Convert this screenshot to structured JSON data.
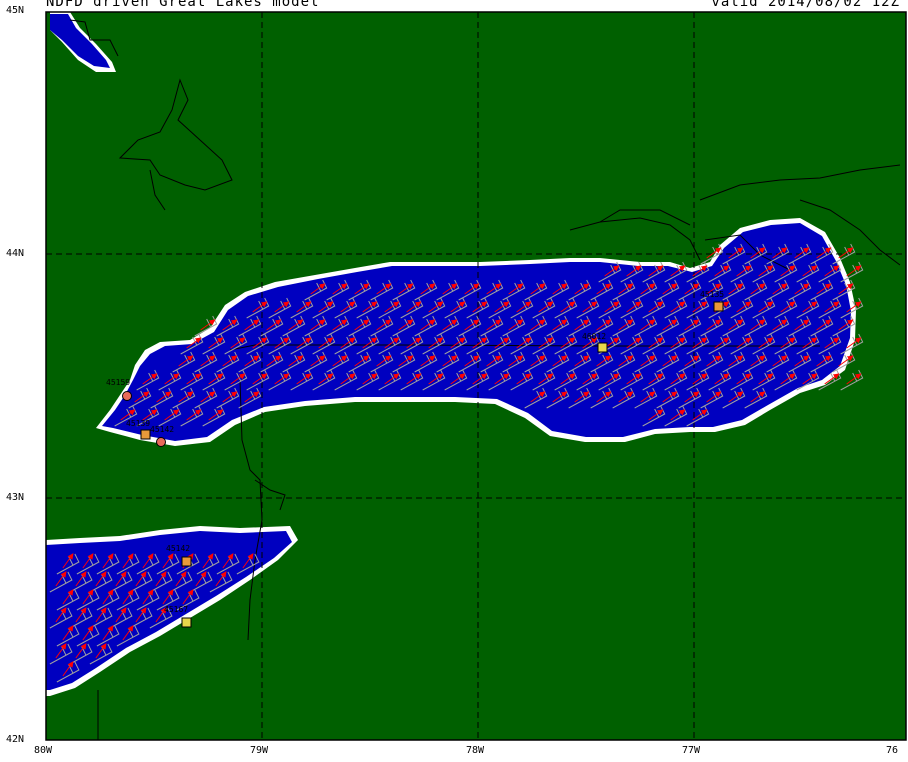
{
  "header": {
    "title_left": "NDFD driven Great Lakes model",
    "title_right": "valid 2014/08/02 12Z"
  },
  "axes": {
    "lat_labels": [
      "45N",
      "44N",
      "43N",
      "42N"
    ],
    "lon_labels": [
      "80W",
      "79W",
      "78W",
      "77W",
      "76"
    ]
  },
  "stations": [
    {
      "id": "46012",
      "label": "46012",
      "color": "#e8d84a"
    },
    {
      "id": "45135",
      "label": "45135",
      "color": "#e89a3a"
    },
    {
      "id": "45159",
      "label": "45159",
      "color": "#e86a5a"
    },
    {
      "id": "45139",
      "label": "45139",
      "color": "#e89a3a"
    },
    {
      "id": "45142",
      "label": "45142",
      "color": "#e86a5a"
    },
    {
      "id": "45142b",
      "label": "45142",
      "color": "#e89a3a"
    },
    {
      "id": "45167",
      "label": "45167",
      "color": "#e8d84a"
    }
  ],
  "colors": {
    "land": "#006000",
    "water": "#0000c0",
    "shore": "#ffffff",
    "current_vector": "#ff0000",
    "wind_barb": "#a0a0a0",
    "grid": "#000000"
  }
}
